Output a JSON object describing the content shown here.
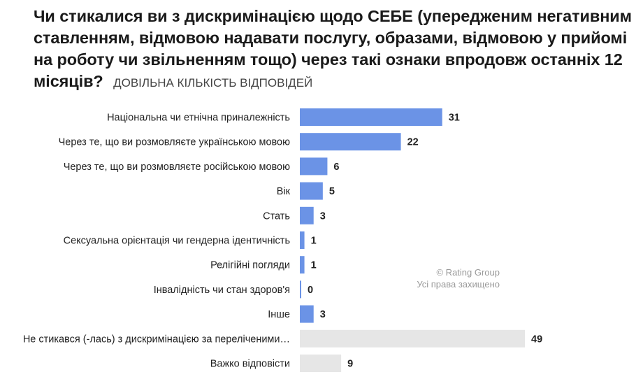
{
  "chart_data": {
    "type": "bar",
    "orientation": "horizontal",
    "title": "Чи стикалися ви з дискримінацією щодо СЕБЕ (упередженим негативним ставленням, відмовою надавати послугу, образами, відмовою у прийомі на роботу чи звільненням тощо) через такі ознаки впродовж останніх 12 місяців?",
    "subtitle": "ДОВІЛЬНА КІЛЬКІСТЬ ВІДПОВІДЕЙ",
    "categories": [
      "Національна чи етнічна приналежність",
      "Через те, що ви розмовляєте українською мовою",
      "Через те, що ви розмовляєте російською мовою",
      "Вік",
      "Стать",
      "Сексуальна орієнтація чи гендерна ідентичність",
      "Релігійні погляди",
      "Інвалідність чи стан здоров'я",
      "Інше",
      "Не стикався (-лась) з дискримінацією за переліченими…",
      "Важко відповісти"
    ],
    "values": [
      31,
      22,
      6,
      5,
      3,
      1,
      1,
      0,
      3,
      49,
      9
    ],
    "bar_colors": [
      "#6b93e6",
      "#6b93e6",
      "#6b93e6",
      "#6b93e6",
      "#6b93e6",
      "#6b93e6",
      "#6b93e6",
      "#6b93e6",
      "#6b93e6",
      "#e6e6e6",
      "#e6e6e6"
    ],
    "xlim": [
      0,
      49
    ],
    "grid": false,
    "watermark": [
      "© Rating Group",
      "Усі права захищено"
    ]
  }
}
